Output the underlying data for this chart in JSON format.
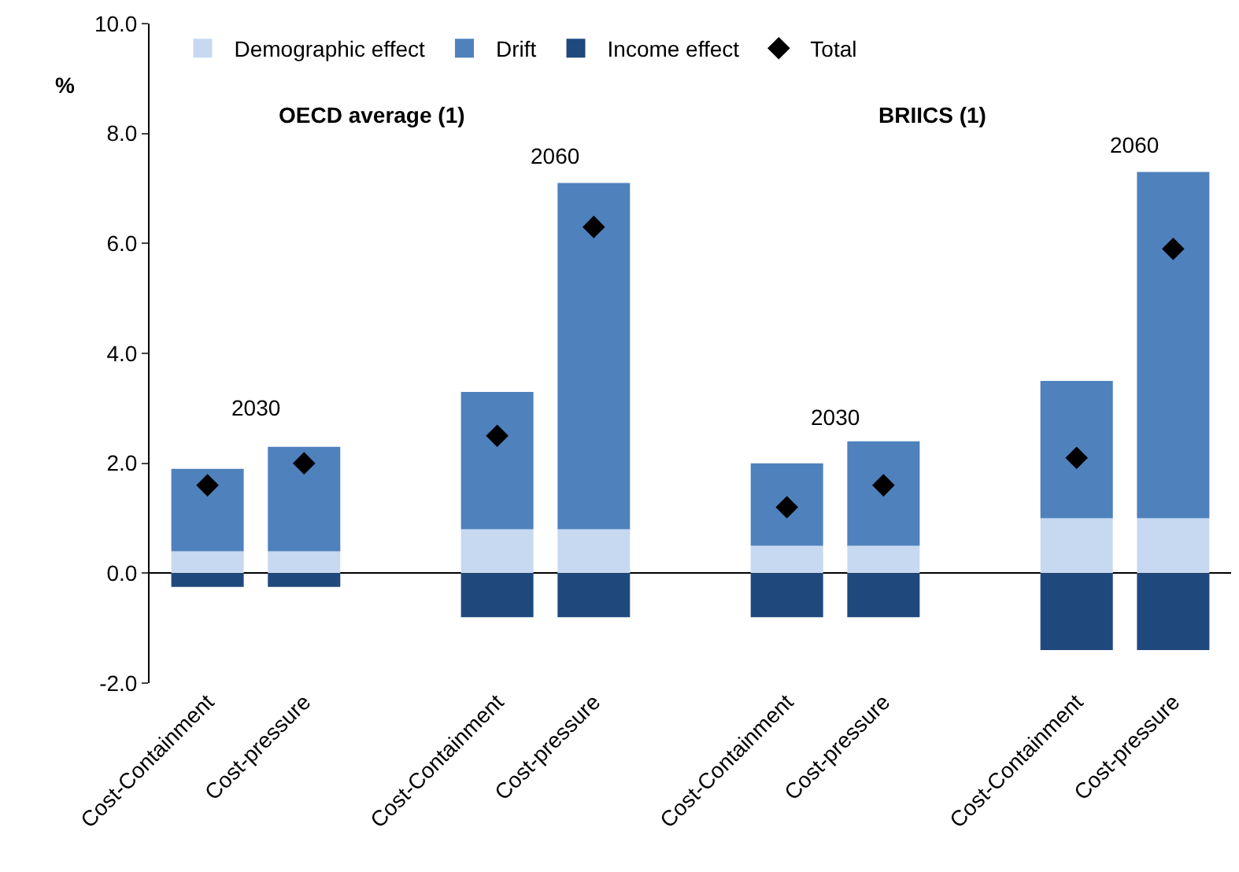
{
  "chart_data": {
    "type": "bar",
    "stacked": true,
    "ylabel": "%",
    "categories": [
      "Cost-Containment",
      "Cost-pressure",
      null,
      "Cost-Containment",
      "Cost-pressure",
      null,
      "Cost-Containment",
      "Cost-pressure",
      null,
      "Cost-Containment",
      "Cost-pressure"
    ],
    "series": [
      {
        "name": "Demographic effect",
        "color": "#c6d9f1",
        "values": [
          0.4,
          0.4,
          null,
          0.8,
          0.8,
          null,
          0.5,
          0.5,
          null,
          1.0,
          1.0
        ]
      },
      {
        "name": "Drift",
        "color": "#4f81bd",
        "values": [
          1.5,
          1.9,
          null,
          2.5,
          6.3,
          null,
          1.5,
          1.9,
          null,
          2.5,
          6.3
        ]
      },
      {
        "name": "Income effect",
        "color": "#1f497d",
        "values": [
          -0.25,
          -0.25,
          null,
          -0.8,
          -0.8,
          null,
          -0.8,
          -0.8,
          null,
          -1.4,
          -1.4
        ]
      },
      {
        "name": "Total",
        "type": "scatter",
        "marker": "diamond",
        "color": "#000000",
        "values": [
          1.6,
          2.0,
          null,
          2.5,
          6.3,
          null,
          1.2,
          1.6,
          null,
          2.1,
          5.9
        ]
      }
    ],
    "ylim": [
      -2,
      10
    ],
    "yticks": [
      {
        "value": -2,
        "label": "-2.0"
      },
      {
        "value": 0,
        "label": "0.0"
      },
      {
        "value": 2,
        "label": "2.0"
      },
      {
        "value": 4,
        "label": "4.0"
      },
      {
        "value": 6,
        "label": "6.0"
      },
      {
        "value": 8,
        "label": "8.0"
      },
      {
        "value": 10,
        "label": "10.0"
      }
    ],
    "annotations": [
      "OECD average (1)",
      "BRIICS (1)",
      "2030",
      "2060",
      "2030",
      "2060"
    ],
    "legend": "top"
  }
}
